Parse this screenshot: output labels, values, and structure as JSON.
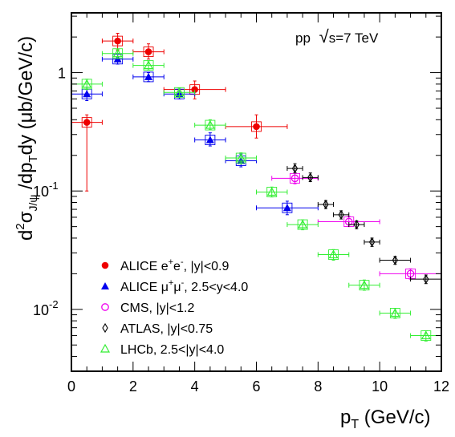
{
  "chart_data": {
    "type": "scatter",
    "title": "",
    "annotation": {
      "prefix": "pp",
      "sqrt_symbol": "√",
      "text": "s=7 TeV"
    },
    "xlabel": {
      "main": "p",
      "sub": "T",
      "unit": " (GeV/c)"
    },
    "ylabel": {
      "d1": "d",
      "sup": "2",
      "sigma": "σ",
      "sub1": "J/ψ",
      "mid": " /dp",
      "sub2": "T",
      "end": "dy (μb/GeV/c)"
    },
    "xlim": [
      0,
      12
    ],
    "ylim": [
      0.003,
      3.2
    ],
    "yscale": "log",
    "x_ticks": [
      "0",
      "2",
      "4",
      "6",
      "8",
      "10",
      "12"
    ],
    "x_tick_values": [
      0,
      2,
      4,
      6,
      8,
      10,
      12
    ],
    "y_ticks": [
      {
        "base": "1",
        "exp": "",
        "value": 1
      },
      {
        "base": "10",
        "exp": "-1",
        "value": 0.1
      },
      {
        "base": "10",
        "exp": "-2",
        "value": 0.01
      }
    ],
    "grid": false,
    "legend_position": "bottom-left",
    "series": [
      {
        "name": "ALICE e⁺e⁻, |y|<0.9",
        "color": "#ee0000",
        "marker": "filled-circle",
        "points": [
          {
            "x": 0.5,
            "xerr": 0.5,
            "y": 0.38,
            "ylo": 0.1,
            "yhi": 0.44
          },
          {
            "x": 1.5,
            "xerr": 0.5,
            "y": 1.85,
            "ylo": 1.55,
            "yhi": 2.15
          },
          {
            "x": 2.5,
            "xerr": 0.5,
            "y": 1.5,
            "ylo": 1.3,
            "yhi": 1.75
          },
          {
            "x": 4.0,
            "xerr": 1.0,
            "y": 0.72,
            "ylo": 0.6,
            "yhi": 0.85
          },
          {
            "x": 6.0,
            "xerr": 1.0,
            "y": 0.35,
            "ylo": 0.28,
            "yhi": 0.44
          }
        ]
      },
      {
        "name": "ALICE μ⁺μ⁻, 2.5<y<4.0",
        "color": "#0000ee",
        "marker": "filled-triangle",
        "points": [
          {
            "x": 0.5,
            "xerr": 0.5,
            "y": 0.66,
            "ylo": 0.58,
            "yhi": 0.75
          },
          {
            "x": 1.5,
            "xerr": 0.5,
            "y": 1.3,
            "ylo": 1.18,
            "yhi": 1.45
          },
          {
            "x": 2.5,
            "xerr": 0.5,
            "y": 0.92,
            "ylo": 0.84,
            "yhi": 1.0
          },
          {
            "x": 3.5,
            "xerr": 0.5,
            "y": 0.66,
            "ylo": 0.6,
            "yhi": 0.72
          },
          {
            "x": 4.5,
            "xerr": 0.5,
            "y": 0.27,
            "ylo": 0.24,
            "yhi": 0.31
          },
          {
            "x": 5.5,
            "xerr": 0.5,
            "y": 0.18,
            "ylo": 0.16,
            "yhi": 0.205
          },
          {
            "x": 7.0,
            "xerr": 1.0,
            "y": 0.072,
            "ylo": 0.063,
            "yhi": 0.082
          }
        ]
      },
      {
        "name": "CMS, |y|<1.2",
        "color": "#ee00ee",
        "marker": "open-circle",
        "points": [
          {
            "x": 7.25,
            "xerr": 0.75,
            "y": 0.128,
            "ylo": 0.115,
            "yhi": 0.142
          },
          {
            "x": 9.0,
            "xerr": 1.0,
            "y": 0.055,
            "ylo": 0.05,
            "yhi": 0.061
          },
          {
            "x": 11.0,
            "xerr": 1.0,
            "y": 0.02,
            "ylo": 0.018,
            "yhi": 0.022
          }
        ]
      },
      {
        "name": "ATLAS, |y|<0.75",
        "color": "#000000",
        "marker": "open-diamond",
        "points": [
          {
            "x": 7.25,
            "xerr": 0.25,
            "y": 0.155,
            "ylo": 0.142,
            "yhi": 0.17
          },
          {
            "x": 7.75,
            "xerr": 0.25,
            "y": 0.13,
            "ylo": 0.12,
            "yhi": 0.142
          },
          {
            "x": 8.25,
            "xerr": 0.25,
            "y": 0.077,
            "ylo": 0.071,
            "yhi": 0.083
          },
          {
            "x": 8.75,
            "xerr": 0.25,
            "y": 0.063,
            "ylo": 0.058,
            "yhi": 0.068
          },
          {
            "x": 9.25,
            "xerr": 0.25,
            "y": 0.052,
            "ylo": 0.048,
            "yhi": 0.056
          },
          {
            "x": 9.75,
            "xerr": 0.25,
            "y": 0.037,
            "ylo": 0.034,
            "yhi": 0.04
          },
          {
            "x": 10.5,
            "xerr": 0.5,
            "y": 0.026,
            "ylo": 0.024,
            "yhi": 0.028
          },
          {
            "x": 11.5,
            "xerr": 0.5,
            "y": 0.018,
            "ylo": 0.0165,
            "yhi": 0.0195
          }
        ]
      },
      {
        "name": "LHCb, 2.5<|y|<4.0",
        "color": "#33ee33",
        "marker": "open-triangle",
        "points": [
          {
            "x": 0.5,
            "xerr": 0.5,
            "y": 0.8,
            "ylo": 0.72,
            "yhi": 0.88
          },
          {
            "x": 1.5,
            "xerr": 0.5,
            "y": 1.45,
            "ylo": 1.32,
            "yhi": 1.58
          },
          {
            "x": 2.5,
            "xerr": 0.5,
            "y": 1.15,
            "ylo": 1.05,
            "yhi": 1.26
          },
          {
            "x": 3.5,
            "xerr": 0.5,
            "y": 0.68,
            "ylo": 0.62,
            "yhi": 0.74
          },
          {
            "x": 4.5,
            "xerr": 0.5,
            "y": 0.36,
            "ylo": 0.33,
            "yhi": 0.4
          },
          {
            "x": 5.5,
            "xerr": 0.5,
            "y": 0.19,
            "ylo": 0.17,
            "yhi": 0.21
          },
          {
            "x": 6.5,
            "xerr": 0.5,
            "y": 0.098,
            "ylo": 0.089,
            "yhi": 0.108
          },
          {
            "x": 7.5,
            "xerr": 0.5,
            "y": 0.052,
            "ylo": 0.047,
            "yhi": 0.057
          },
          {
            "x": 8.5,
            "xerr": 0.5,
            "y": 0.029,
            "ylo": 0.026,
            "yhi": 0.032
          },
          {
            "x": 9.5,
            "xerr": 0.5,
            "y": 0.016,
            "ylo": 0.0145,
            "yhi": 0.0177
          },
          {
            "x": 10.5,
            "xerr": 0.5,
            "y": 0.0093,
            "ylo": 0.0084,
            "yhi": 0.0102
          },
          {
            "x": 11.5,
            "xerr": 0.5,
            "y": 0.006,
            "ylo": 0.0054,
            "yhi": 0.0066
          }
        ]
      }
    ],
    "legend": [
      {
        "label": "ALICE e",
        "sup1": "+",
        "mid": "e",
        "sup2": "-",
        "rest": ", |y|<0.9",
        "color": "#ee0000",
        "marker": "filled-circle"
      },
      {
        "label": "ALICE μ",
        "sup1": "+",
        "mid": "μ",
        "sup2": "-",
        "rest": ", 2.5<y<4.0",
        "color": "#0000ee",
        "marker": "filled-triangle"
      },
      {
        "label": "CMS, |y|<1.2",
        "sup1": "",
        "mid": "",
        "sup2": "",
        "rest": "",
        "color": "#ee00ee",
        "marker": "open-circle"
      },
      {
        "label": "ATLAS, |y|<0.75",
        "sup1": "",
        "mid": "",
        "sup2": "",
        "rest": "",
        "color": "#000000",
        "marker": "open-diamond"
      },
      {
        "label": "LHCb, 2.5<|y|<4.0",
        "sup1": "",
        "mid": "",
        "sup2": "",
        "rest": "",
        "color": "#33ee33",
        "marker": "open-triangle"
      }
    ]
  }
}
